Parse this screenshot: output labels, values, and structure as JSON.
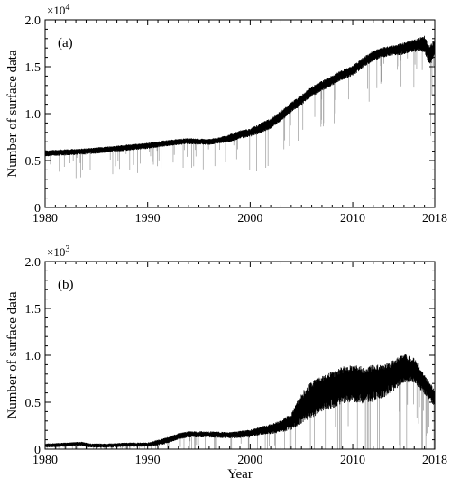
{
  "chart_data": [
    {
      "type": "line",
      "panel_label": "(a)",
      "multiplier": "×10",
      "multiplier_exp": "4",
      "ylabel": "Number of surface data",
      "xlabel": "",
      "xlim": [
        1980,
        2018
      ],
      "ylim": [
        0,
        2.0
      ],
      "x_ticks": [
        1980,
        1990,
        2000,
        2010,
        2018
      ],
      "x_tick_labels": [
        "1980",
        "1990",
        "2000",
        "2010",
        "2018"
      ],
      "y_ticks": [
        0,
        0.5,
        1.0,
        1.5,
        2.0
      ],
      "y_tick_labels": [
        "0",
        "0.5",
        "1.0",
        "1.5",
        "2.0"
      ],
      "grid": false,
      "series": [
        {
          "x": [
            1980,
            1982,
            1984,
            1986,
            1988,
            1990,
            1992,
            1994,
            1996,
            1997,
            1998,
            1999,
            2000,
            2001,
            2002,
            2003,
            2004,
            2005,
            2006,
            2007,
            2008,
            2009,
            2010,
            2011,
            2012,
            2013,
            2014,
            2015,
            2016,
            2017,
            2017.5,
            2018
          ],
          "y": [
            0.58,
            0.59,
            0.6,
            0.62,
            0.64,
            0.66,
            0.69,
            0.71,
            0.7,
            0.72,
            0.74,
            0.78,
            0.8,
            0.85,
            0.9,
            0.98,
            1.07,
            1.15,
            1.24,
            1.3,
            1.36,
            1.42,
            1.46,
            1.55,
            1.62,
            1.66,
            1.68,
            1.7,
            1.73,
            1.75,
            1.62,
            1.72
          ],
          "spread": [
            0.03,
            0.03,
            0.03,
            0.03,
            0.03,
            0.03,
            0.03,
            0.03,
            0.03,
            0.03,
            0.04,
            0.04,
            0.04,
            0.05,
            0.05,
            0.05,
            0.05,
            0.05,
            0.05,
            0.05,
            0.05,
            0.05,
            0.05,
            0.05,
            0.05,
            0.05,
            0.05,
            0.06,
            0.06,
            0.08,
            0.1,
            0.08
          ]
        }
      ]
    },
    {
      "type": "line",
      "panel_label": "(b)",
      "multiplier": "×10",
      "multiplier_exp": "3",
      "ylabel": "Number of surface data",
      "xlabel": "Year",
      "xlim": [
        1980,
        2018
      ],
      "ylim": [
        0,
        2.0
      ],
      "x_ticks": [
        1980,
        1990,
        2000,
        2010,
        2018
      ],
      "x_tick_labels": [
        "1980",
        "1990",
        "2000",
        "2010",
        "2018"
      ],
      "y_ticks": [
        0,
        0.5,
        1.0,
        1.5,
        2.0
      ],
      "y_tick_labels": [
        "0",
        "0.5",
        "1.0",
        "1.5",
        "2.0"
      ],
      "grid": false,
      "series": [
        {
          "x": [
            1980,
            1982,
            1983.5,
            1984.5,
            1986,
            1988,
            1990,
            1991,
            1992,
            1993,
            1994,
            1996,
            1998,
            2000,
            2001,
            2002,
            2003,
            2004,
            2005,
            2006,
            2007,
            2008,
            2009,
            2010,
            2011,
            2012,
            2013,
            2014,
            2015,
            2016,
            2017,
            2018
          ],
          "y": [
            0.04,
            0.05,
            0.06,
            0.04,
            0.04,
            0.05,
            0.05,
            0.07,
            0.1,
            0.14,
            0.16,
            0.16,
            0.15,
            0.17,
            0.2,
            0.22,
            0.25,
            0.3,
            0.45,
            0.55,
            0.6,
            0.65,
            0.7,
            0.72,
            0.7,
            0.72,
            0.74,
            0.8,
            0.88,
            0.85,
            0.7,
            0.55
          ],
          "spread": [
            0.02,
            0.02,
            0.02,
            0.02,
            0.02,
            0.02,
            0.02,
            0.03,
            0.03,
            0.03,
            0.03,
            0.03,
            0.03,
            0.04,
            0.04,
            0.05,
            0.06,
            0.08,
            0.15,
            0.18,
            0.18,
            0.18,
            0.18,
            0.18,
            0.18,
            0.18,
            0.16,
            0.15,
            0.14,
            0.12,
            0.1,
            0.08
          ]
        }
      ]
    }
  ]
}
